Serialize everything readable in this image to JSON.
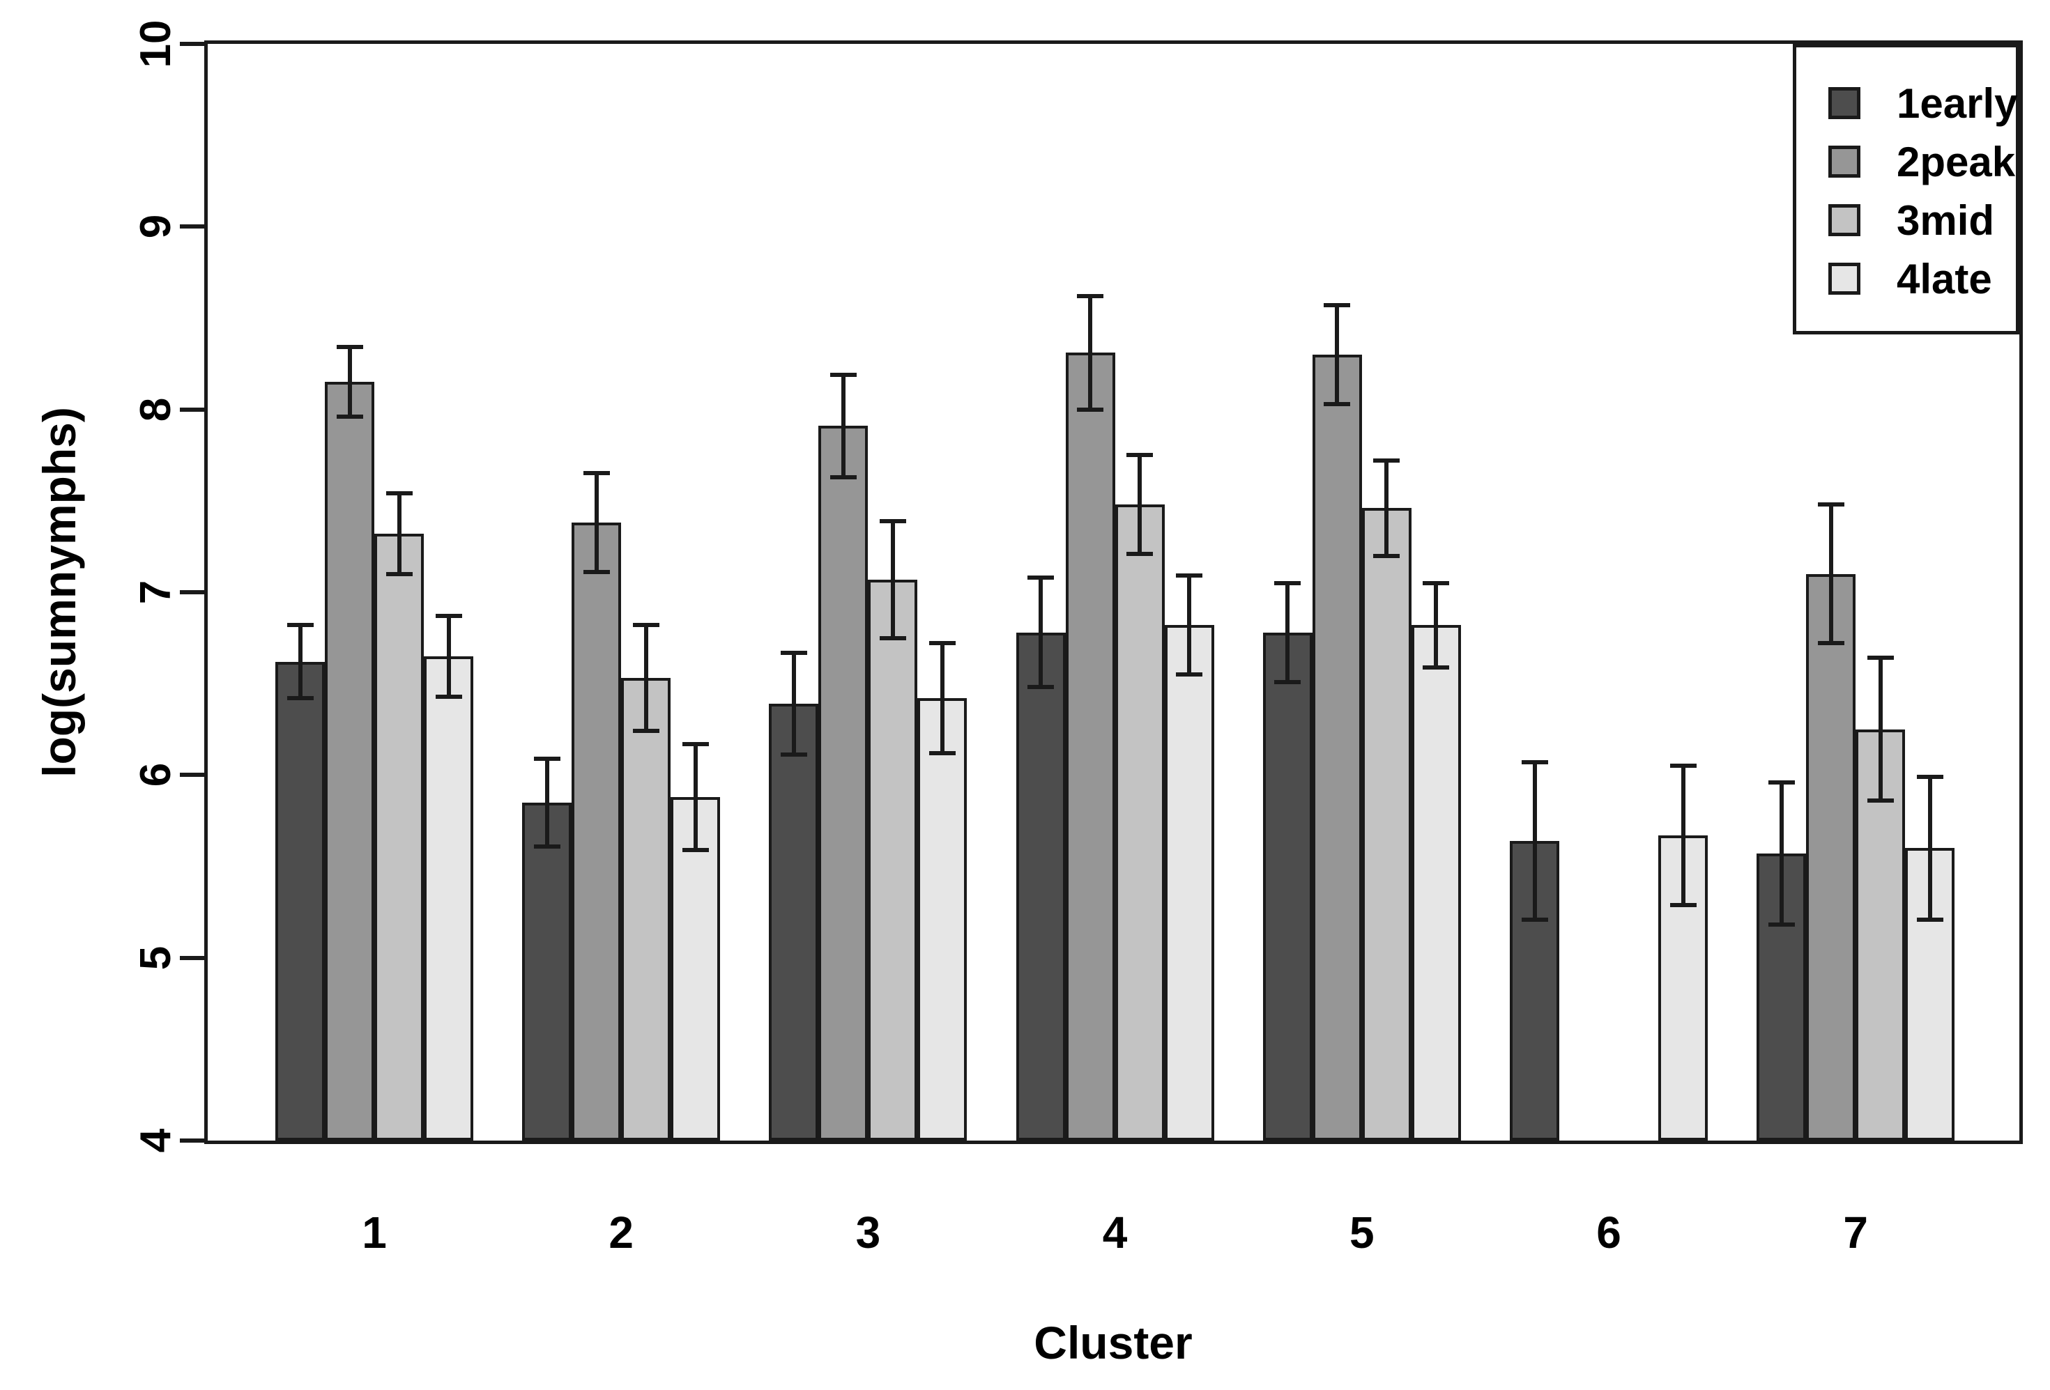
{
  "chart_data": {
    "type": "bar",
    "title": "",
    "xlabel": "Cluster",
    "ylabel": "log(sumnymphs)",
    "ylim": [
      4,
      10
    ],
    "yticks": [
      4,
      5,
      6,
      7,
      8,
      9,
      10
    ],
    "categories": [
      "1",
      "2",
      "3",
      "4",
      "5",
      "6",
      "7"
    ],
    "grid": false,
    "legend_position": "top-right",
    "error_bars": "plus-minus, capped",
    "series": [
      {
        "name": "1early",
        "color": "#4D4D4D",
        "values": [
          6.62,
          5.85,
          6.39,
          6.78,
          6.78,
          5.64,
          5.57
        ],
        "errors": [
          0.2,
          0.24,
          0.28,
          0.3,
          0.27,
          0.43,
          0.39
        ]
      },
      {
        "name": "2peak",
        "color": "#969696",
        "values": [
          8.15,
          7.38,
          7.91,
          8.31,
          8.3,
          null,
          7.1
        ],
        "errors": [
          0.19,
          0.27,
          0.28,
          0.31,
          0.27,
          null,
          0.38
        ]
      },
      {
        "name": "3mid",
        "color": "#C3C3C3",
        "values": [
          7.32,
          6.53,
          7.07,
          7.48,
          7.46,
          null,
          6.25
        ],
        "errors": [
          0.22,
          0.29,
          0.32,
          0.27,
          0.26,
          null,
          0.39
        ]
      },
      {
        "name": "4late",
        "color": "#E6E6E6",
        "values": [
          6.65,
          5.88,
          6.42,
          6.82,
          6.82,
          5.67,
          5.6
        ],
        "errors": [
          0.22,
          0.29,
          0.3,
          0.27,
          0.23,
          0.38,
          0.39
        ]
      }
    ]
  }
}
